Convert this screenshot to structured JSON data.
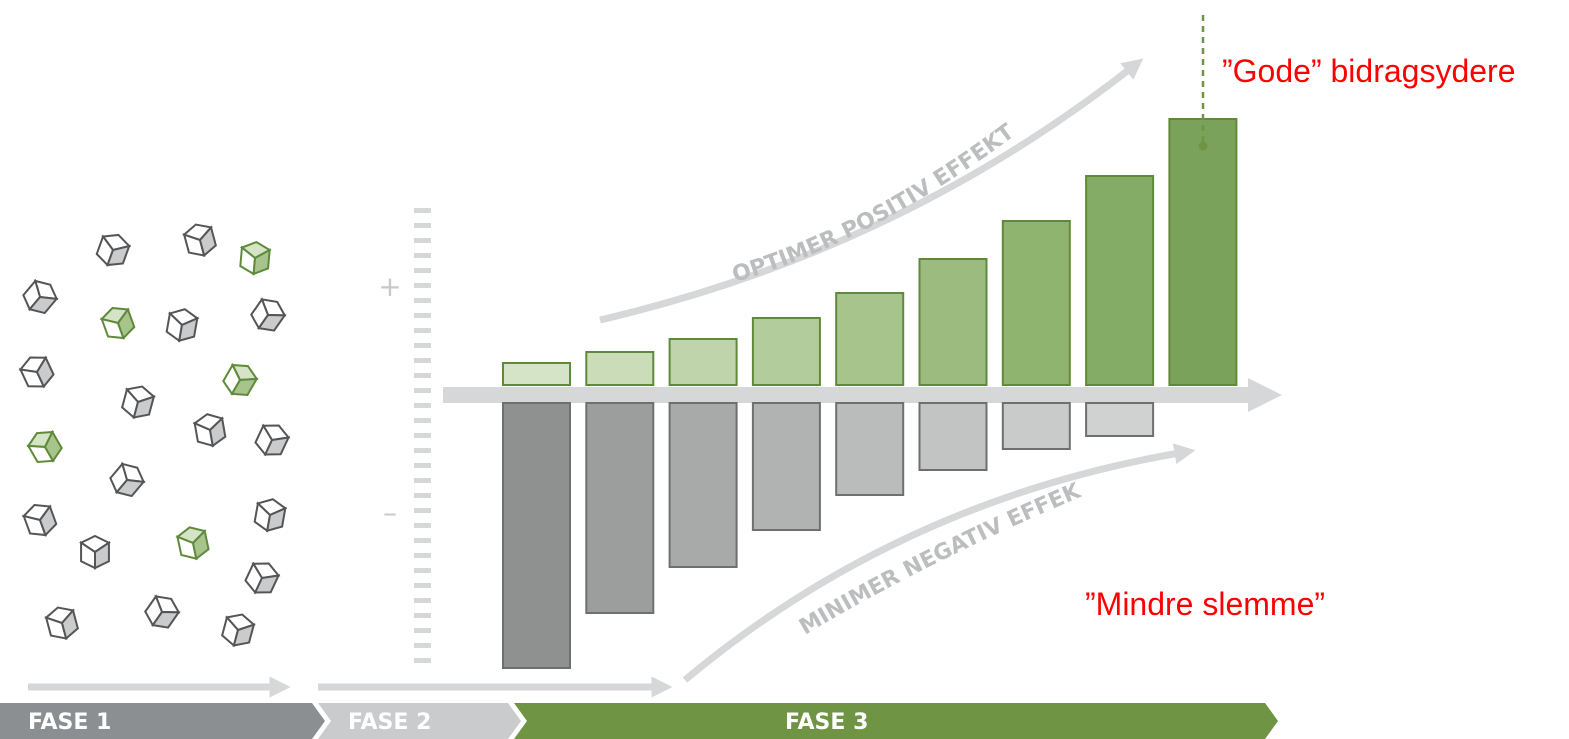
{
  "scale": {
    "plus": "+",
    "minus": "–"
  },
  "arrows": {
    "positive": "OPTIMER POSITIV EFFEKT",
    "negative": "MINIMER NEGATIV EFFEKT"
  },
  "annotations": {
    "good": "”Gode” bidragsydere",
    "less_bad": "”Mindre slemme”"
  },
  "phases": [
    "FASE 1",
    "FASE 2",
    "FASE 3"
  ]
}
